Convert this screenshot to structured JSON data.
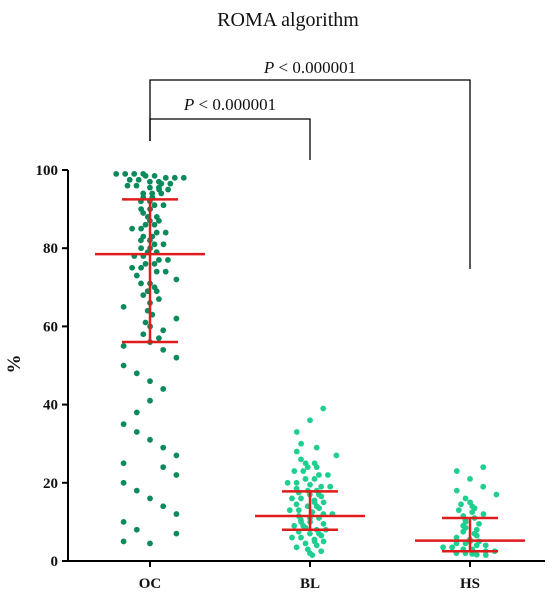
{
  "chart_data": {
    "type": "scatter",
    "title": "ROMA algorithm",
    "xlabel": "",
    "ylabel": "%",
    "ylim": [
      0,
      100
    ],
    "yticks": [
      0,
      20,
      40,
      60,
      80,
      100
    ],
    "grid": false,
    "categories": [
      "OC",
      "BL",
      "HS"
    ],
    "colors": {
      "OC": "#0b8a5a",
      "BL": "#1fcf8f",
      "HS": "#1fcf8f",
      "summary": "#e01b1b"
    },
    "series": [
      {
        "category": "OC",
        "values": [
          99,
          99,
          99,
          99,
          98.5,
          98.5,
          98,
          98,
          98,
          97.5,
          97.5,
          97,
          97,
          96.5,
          96.5,
          96,
          96,
          95.5,
          95.5,
          95,
          95,
          94,
          94,
          94,
          93,
          93,
          92,
          92,
          91,
          91,
          90,
          90,
          89,
          88,
          88,
          87,
          87,
          86,
          86,
          85,
          85,
          84,
          84,
          83,
          83,
          82,
          82,
          81,
          81,
          80,
          80,
          79,
          79,
          78,
          78,
          77,
          77,
          76,
          76,
          75,
          75,
          74,
          74,
          73,
          72,
          71,
          71,
          70,
          69,
          69,
          68,
          67,
          66,
          65,
          64,
          63,
          62,
          61,
          60,
          59,
          58,
          57,
          56,
          55,
          54,
          52,
          50,
          48,
          46,
          44,
          41,
          38,
          35,
          33,
          31,
          29,
          27,
          25,
          24,
          22,
          20,
          18,
          16,
          14,
          12,
          10,
          8,
          7,
          5,
          4.5
        ],
        "mean": 78.5,
        "sd_upper": 92.5,
        "sd_lower": 56
      },
      {
        "category": "BL",
        "values": [
          39,
          36,
          33,
          30,
          29,
          28,
          27,
          26,
          25,
          25,
          24,
          24,
          23,
          23,
          22,
          22,
          21,
          21,
          20,
          20,
          19.5,
          19,
          19,
          18.5,
          18,
          18,
          17.5,
          17,
          17,
          16.5,
          16,
          16,
          15.5,
          15,
          15,
          14.5,
          14,
          14,
          13.5,
          13,
          13,
          12.5,
          12,
          12,
          11.5,
          11,
          11,
          10.5,
          10,
          10,
          9.5,
          9,
          9,
          8.5,
          8,
          8,
          7.5,
          7,
          7,
          6.5,
          6,
          6,
          5.5,
          5,
          5,
          4.5,
          4,
          3.5,
          3,
          2.5,
          2,
          1.5
        ],
        "mean": 11.5,
        "sd_upper": 17.8,
        "sd_lower": 8
      },
      {
        "category": "HS",
        "values": [
          24,
          23,
          21,
          19,
          18,
          17,
          16,
          15,
          14.5,
          14,
          13.5,
          13,
          12.5,
          12,
          11.5,
          11,
          10.5,
          10,
          9.5,
          9,
          8.5,
          8,
          7.5,
          7,
          6.5,
          6,
          5.5,
          5,
          5,
          4.5,
          4.5,
          4,
          4,
          3.5,
          3.5,
          3,
          3,
          2.5,
          2.5,
          2,
          2,
          1.8,
          1.6,
          1.5
        ],
        "mean": 5.2,
        "sd_upper": 11,
        "sd_lower": 2.5
      }
    ],
    "comparisons": [
      {
        "from": "OC",
        "to": "BL",
        "label_prefix": "P",
        "label": " < 0.000001"
      },
      {
        "from": "OC",
        "to": "HS",
        "label_prefix": "P",
        "label": " < 0.000001"
      }
    ]
  }
}
